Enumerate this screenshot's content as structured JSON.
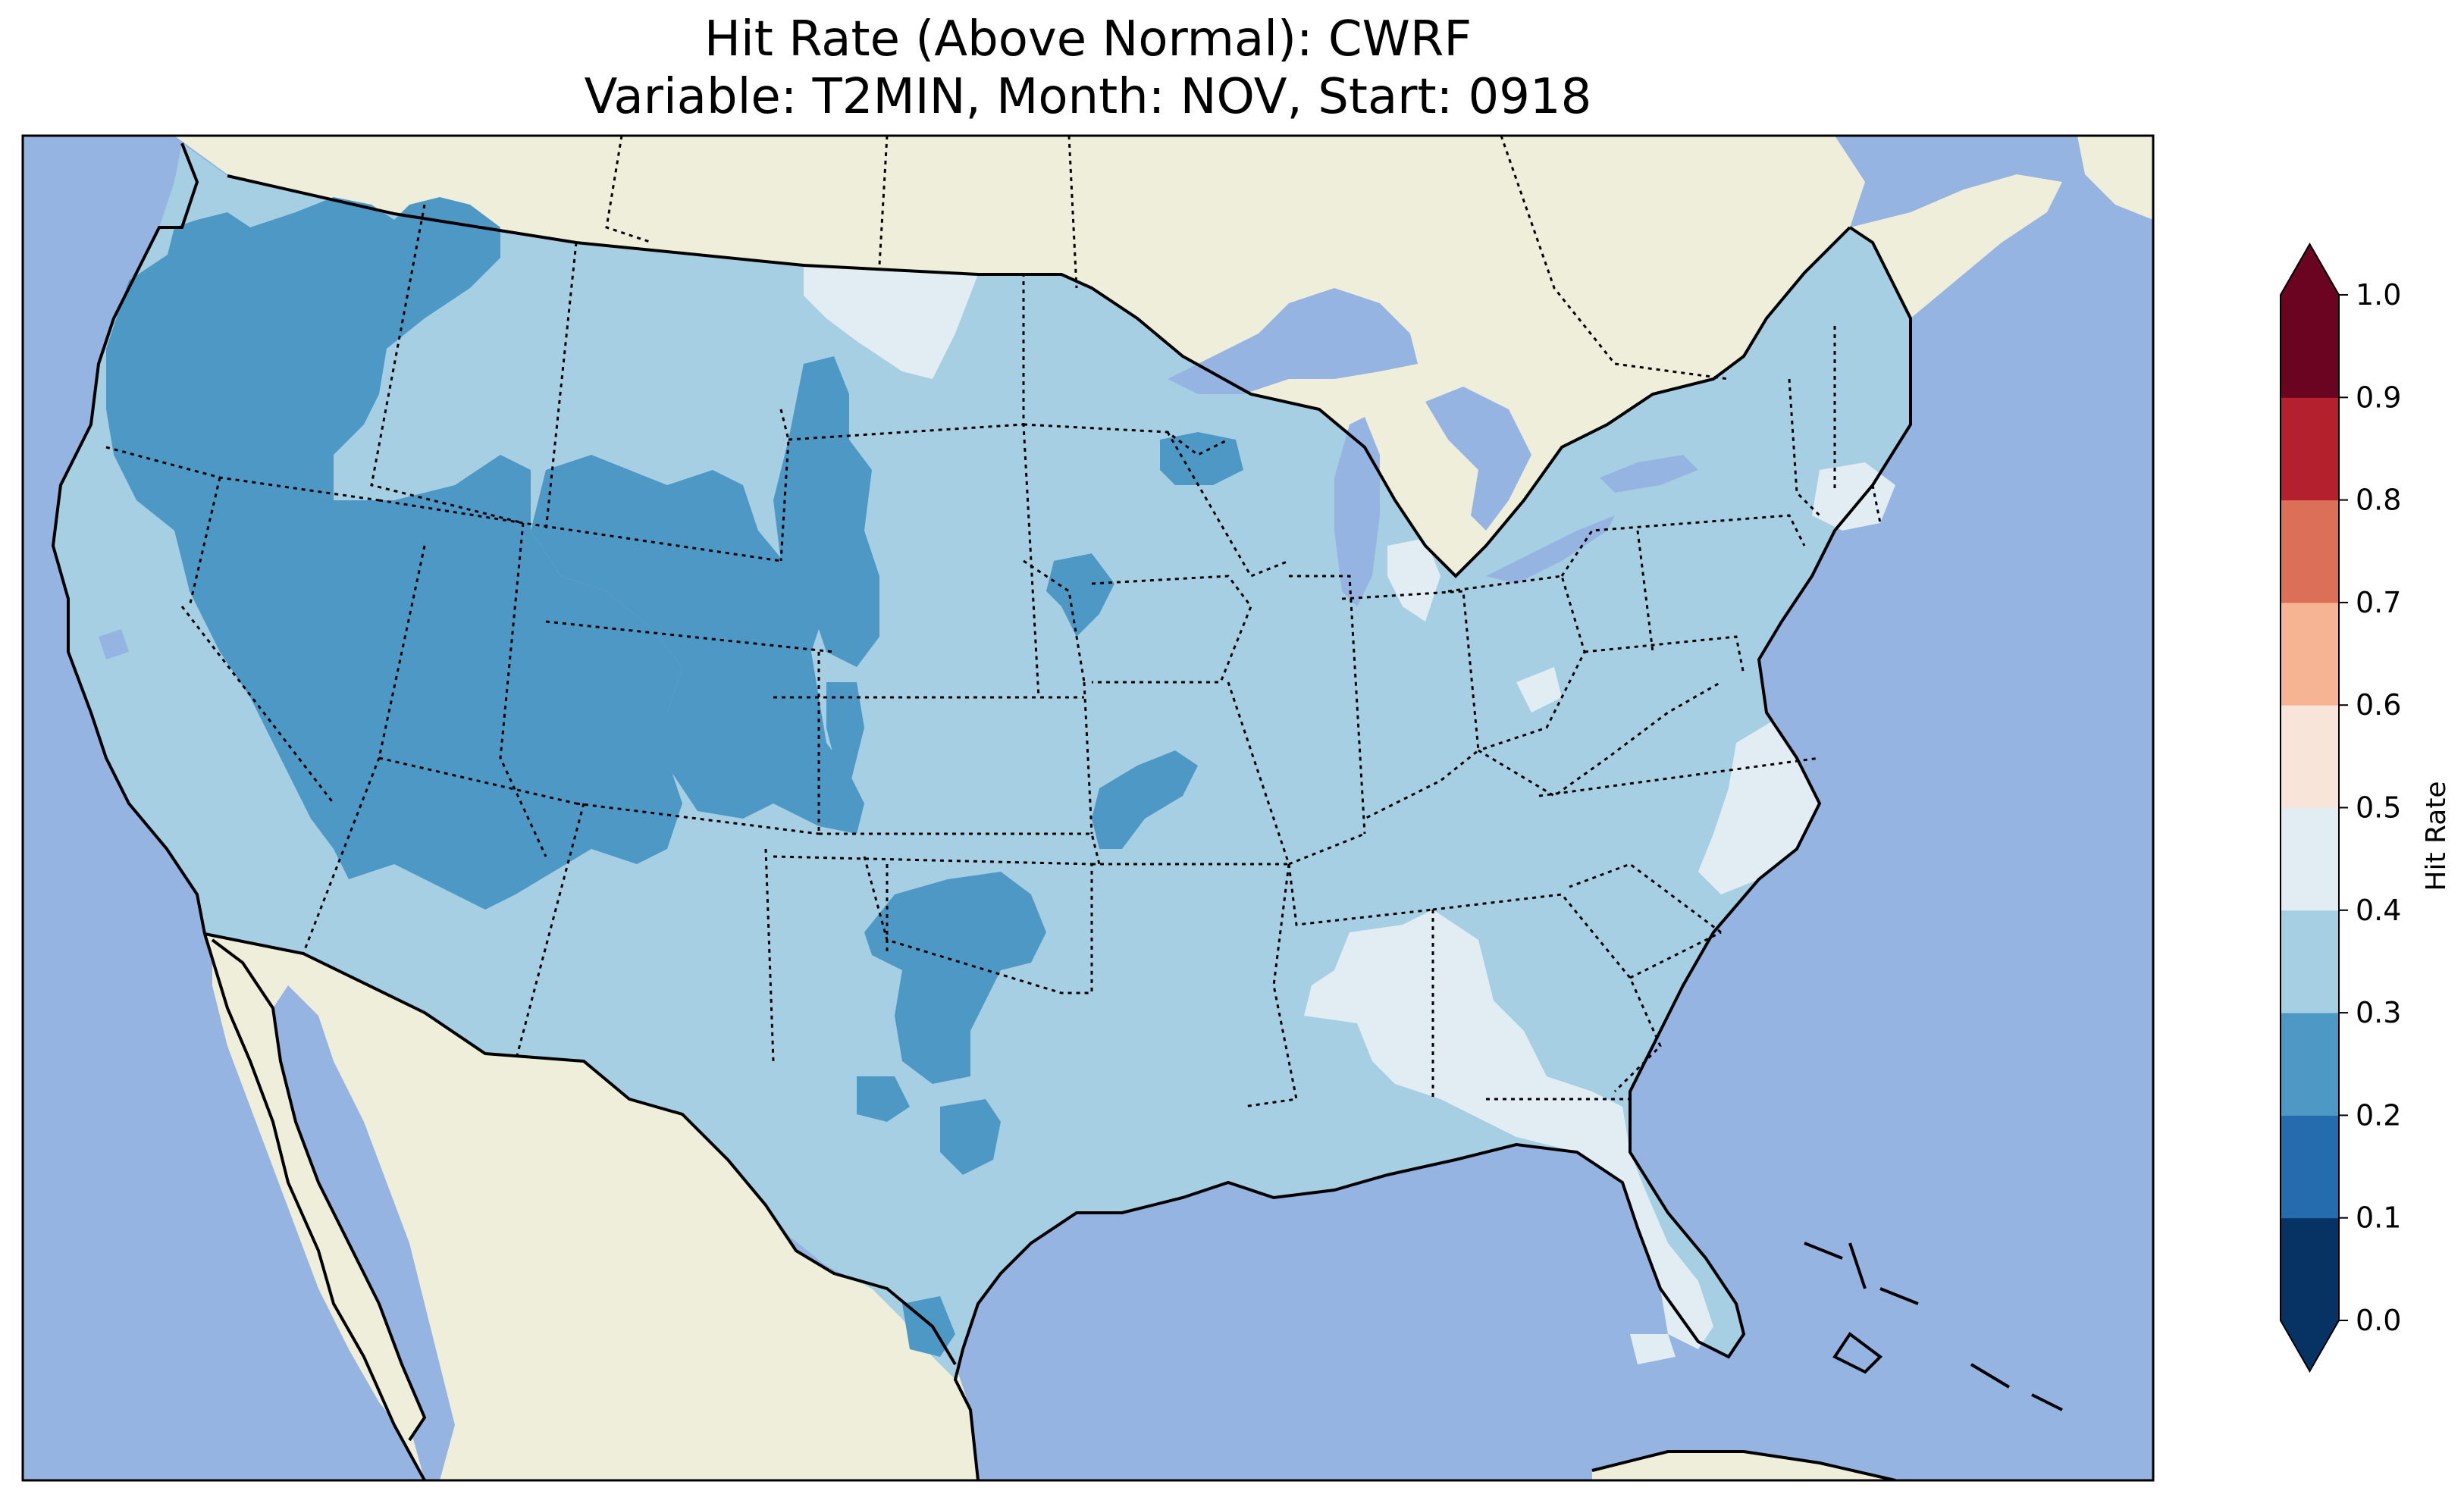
{
  "title": {
    "line1": "Hit Rate (Above Normal): CWRF",
    "line2": "Variable: T2MIN, Month: NOV, Start: 0918"
  },
  "colors": {
    "ocean": "#96b4e1",
    "land": "#efeedb",
    "hit_0_1": "#073264",
    "hit_1_2": "#246cae",
    "hit_2_3": "#4e98c6",
    "hit_3_4": "#a7cfe4",
    "hit_4_5": "#e2edf3",
    "hit_5_6": "#f9e4d9",
    "hit_6_7": "#f6b495",
    "hit_7_8": "#dc6f58",
    "hit_8_9": "#b4202e",
    "hit_9_10": "#6a0421"
  },
  "chart_data": {
    "type": "heatmap",
    "title": "Hit Rate (Above Normal): CWRF\nVariable: T2MIN, Month: NOV, Start: 0918",
    "colorbar": {
      "label": "Hit Rate",
      "min": 0.0,
      "max": 1.0,
      "extend": "both",
      "ticks": [
        "0.0",
        "0.1",
        "0.2",
        "0.3",
        "0.4",
        "0.5",
        "0.6",
        "0.7",
        "0.8",
        "0.9",
        "1.0"
      ],
      "bins": [
        {
          "range": [
            0.0,
            0.1
          ],
          "color": "#073264"
        },
        {
          "range": [
            0.1,
            0.2
          ],
          "color": "#246cae"
        },
        {
          "range": [
            0.2,
            0.3
          ],
          "color": "#4e98c6"
        },
        {
          "range": [
            0.3,
            0.4
          ],
          "color": "#a7cfe4"
        },
        {
          "range": [
            0.4,
            0.5
          ],
          "color": "#e2edf3"
        },
        {
          "range": [
            0.5,
            0.6
          ],
          "color": "#f9e4d9"
        },
        {
          "range": [
            0.6,
            0.7
          ],
          "color": "#f6b495"
        },
        {
          "range": [
            0.7,
            0.8
          ],
          "color": "#dc6f58"
        },
        {
          "range": [
            0.8,
            0.9
          ],
          "color": "#b4202e"
        },
        {
          "range": [
            0.9,
            1.0
          ],
          "color": "#6a0421"
        }
      ]
    },
    "regions": [
      {
        "name": "Pacific Northwest and Great Basin",
        "bin": [
          0.2,
          0.3
        ]
      },
      {
        "name": "Northern and Central Rockies",
        "bin": [
          0.2,
          0.3
        ]
      },
      {
        "name": "Western High Plains",
        "bin": [
          0.2,
          0.3
        ]
      },
      {
        "name": "Western Oklahoma and West Texas",
        "bin": [
          0.2,
          0.3
        ]
      },
      {
        "name": "Most of contiguous U.S. (default)",
        "bin": [
          0.3,
          0.4
        ]
      },
      {
        "name": "Southeast (Mississippi, Alabama, Georgia, Florida)",
        "bin": [
          0.4,
          0.5
        ]
      },
      {
        "name": "Coastal Carolinas",
        "bin": [
          0.4,
          0.5
        ]
      },
      {
        "name": "Northern Montana / North Dakota border",
        "bin": [
          0.4,
          0.5
        ]
      },
      {
        "name": "Southern New England",
        "bin": [
          0.4,
          0.5
        ]
      }
    ]
  }
}
